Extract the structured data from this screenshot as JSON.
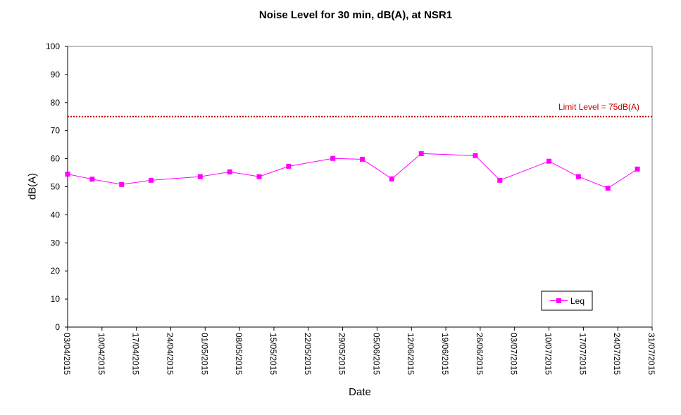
{
  "chart_data": {
    "type": "line",
    "title": "Noise Level for 30 min, dB(A), at NSR1",
    "xlabel": "Date",
    "ylabel": "dB(A)",
    "ylim": [
      0,
      100
    ],
    "y_ticks": [
      0,
      10,
      20,
      30,
      40,
      50,
      60,
      70,
      80,
      90,
      100
    ],
    "xlim": [
      "2015-04-03",
      "2015-07-31"
    ],
    "x_tick_labels": [
      "03/04/2015",
      "10/04/2015",
      "17/04/2015",
      "24/04/2015",
      "01/05/2015",
      "08/05/2015",
      "15/05/2015",
      "22/05/2015",
      "29/05/2015",
      "05/06/2015",
      "12/06/2015",
      "19/06/2015",
      "26/06/2015",
      "03/07/2015",
      "10/07/2015",
      "17/07/2015",
      "24/07/2015",
      "31/07/2015"
    ],
    "grid": false,
    "legend_position": "bottom-right",
    "series": [
      {
        "name": "Leq",
        "color": "#ff00ff",
        "marker": "square",
        "x": [
          "2015-04-03",
          "2015-04-08",
          "2015-04-14",
          "2015-04-20",
          "2015-04-30",
          "2015-05-06",
          "2015-05-12",
          "2015-05-18",
          "2015-05-27",
          "2015-06-02",
          "2015-06-08",
          "2015-06-14",
          "2015-06-25",
          "2015-06-30",
          "2015-07-10",
          "2015-07-16",
          "2015-07-22",
          "2015-07-28"
        ],
        "values": [
          54.5,
          52.7,
          50.8,
          52.3,
          53.6,
          55.3,
          53.6,
          57.3,
          60.1,
          59.8,
          52.8,
          61.8,
          61.1,
          52.3,
          59.1,
          53.6,
          49.5,
          56.3
        ]
      }
    ],
    "reference_lines": [
      {
        "label": "Limit Level  = 75dB(A)",
        "y": 75,
        "color": "#c00000",
        "style": "dotted"
      }
    ]
  }
}
